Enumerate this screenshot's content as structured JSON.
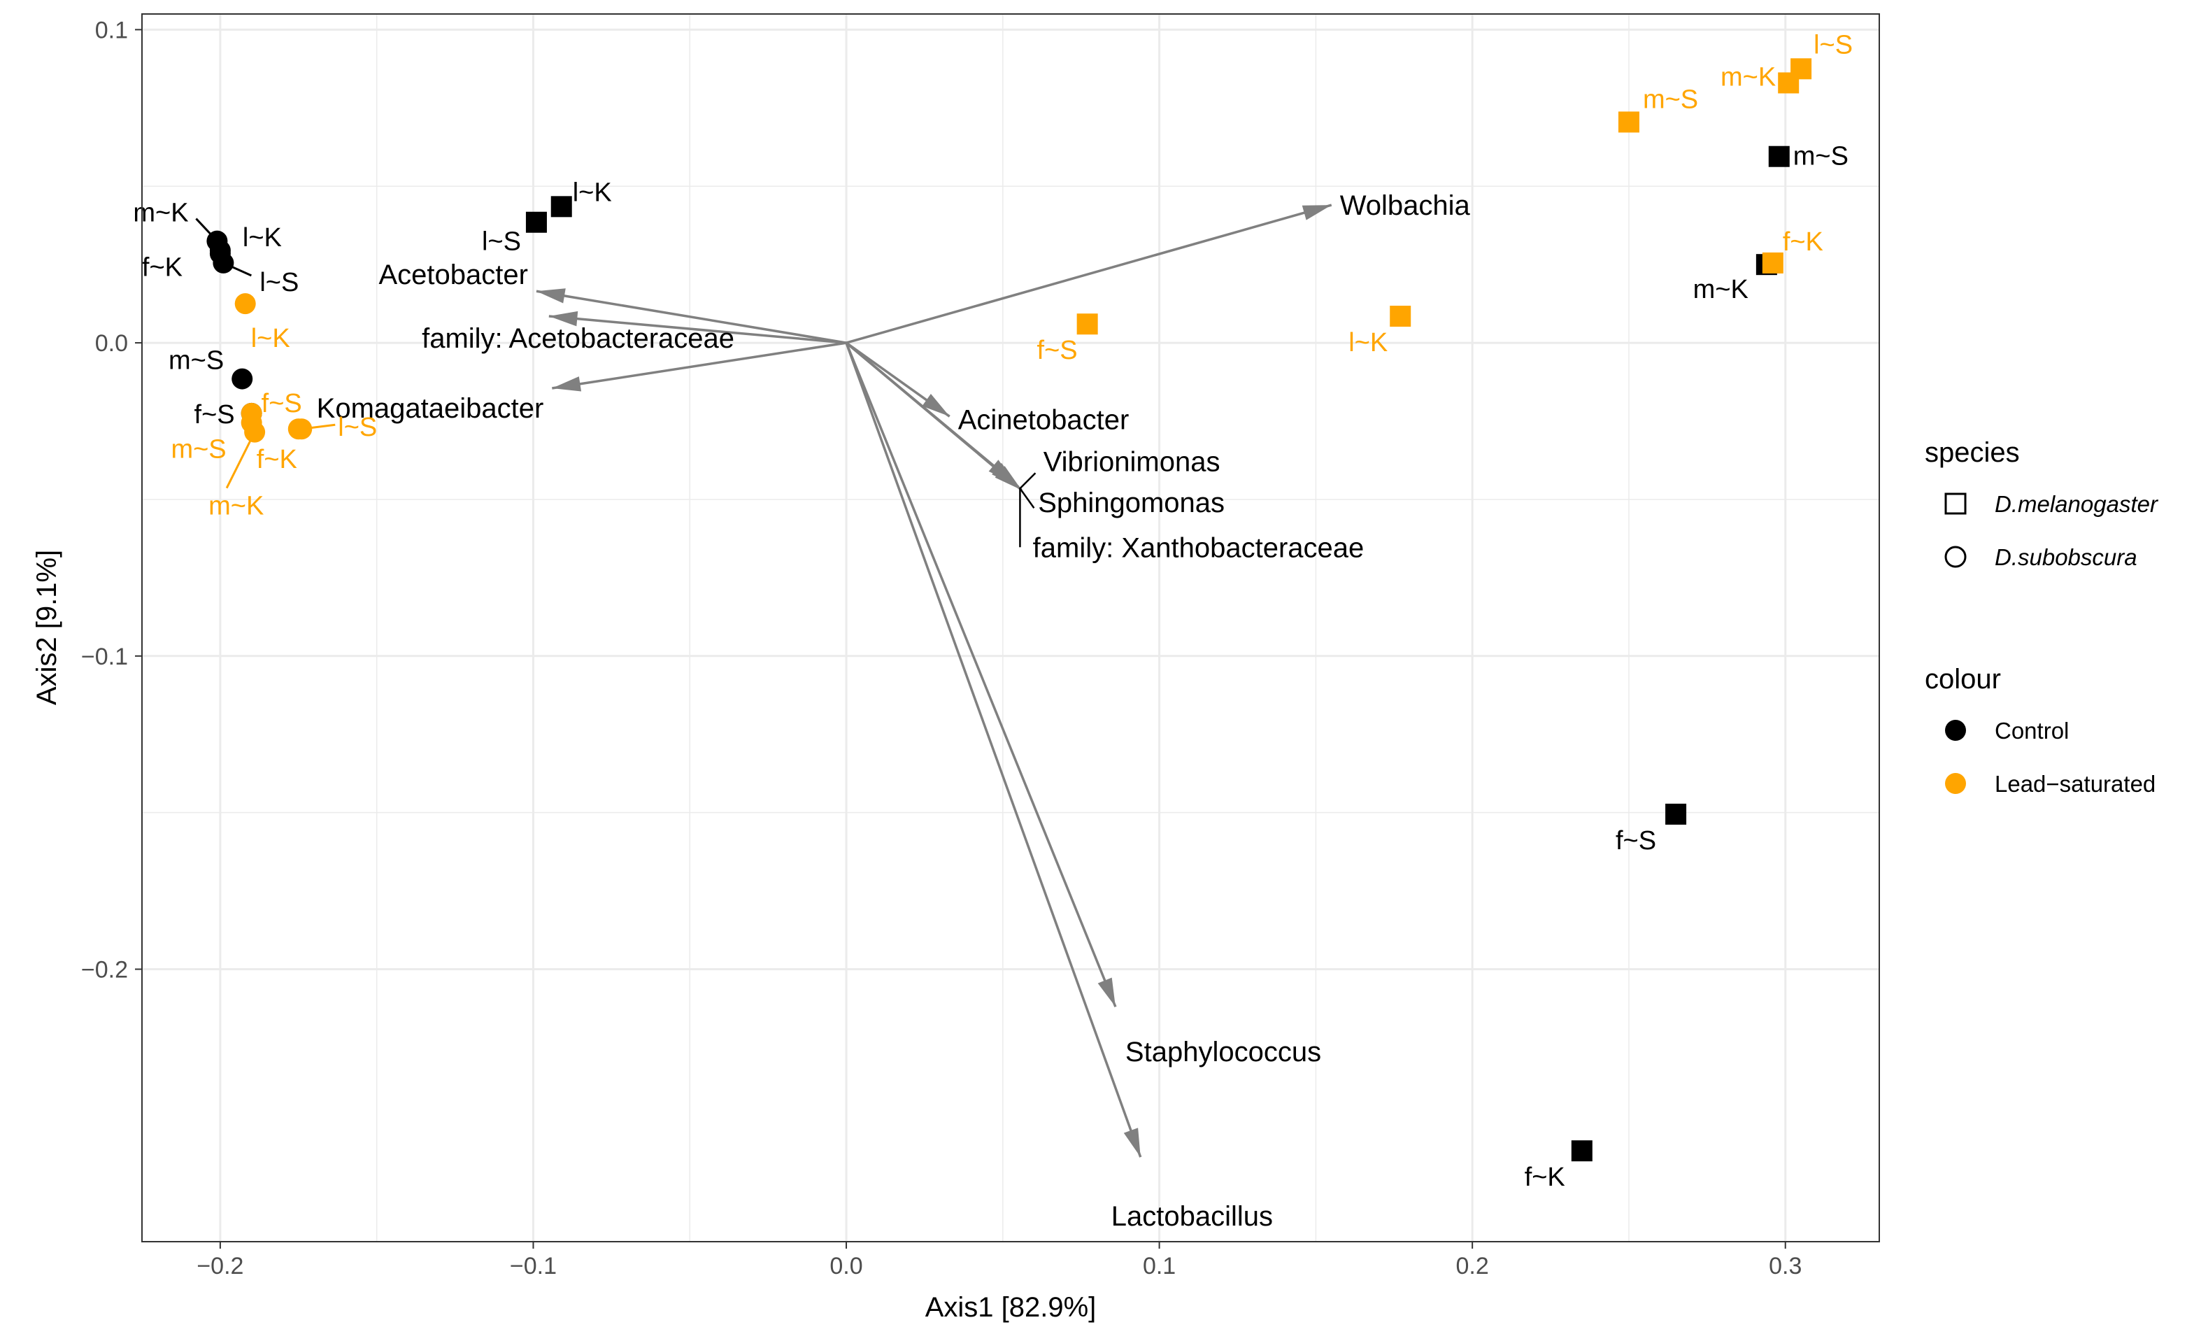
{
  "chart_data": {
    "type": "scatter",
    "xlabel": "Axis1   [82.9%]",
    "ylabel": "Axis2   [9.1%]",
    "xlim": [
      -0.225,
      0.33
    ],
    "ylim": [
      -0.287,
      0.105
    ],
    "x_ticks": [
      {
        "value": -0.2,
        "label": "−0.2"
      },
      {
        "value": -0.1,
        "label": "−0.1"
      },
      {
        "value": 0.0,
        "label": "0.0"
      },
      {
        "value": 0.1,
        "label": "0.1"
      },
      {
        "value": 0.2,
        "label": "0.2"
      },
      {
        "value": 0.3,
        "label": "0.3"
      }
    ],
    "y_ticks": [
      {
        "value": 0.1,
        "label": "0.1"
      },
      {
        "value": 0.0,
        "label": "0.0"
      },
      {
        "value": -0.1,
        "label": "−0.1"
      },
      {
        "value": -0.2,
        "label": "−0.2"
      }
    ],
    "grid": true,
    "legend_position": "right",
    "colors": {
      "Control": "#000000",
      "Lead-saturated": "#ffa500",
      "arrow": "#808080",
      "grid": "#ebebeb"
    },
    "legends": [
      {
        "title": "species",
        "kind": "shape",
        "items": [
          {
            "label": "D.melanogaster",
            "shape": "square",
            "italic": true
          },
          {
            "label": "D.subobscura",
            "shape": "circle",
            "italic": true
          }
        ]
      },
      {
        "title": "colour",
        "kind": "color",
        "items": [
          {
            "label": "Control",
            "colour": "Control"
          },
          {
            "label": "Lead−saturated",
            "colour": "Lead-saturated"
          }
        ]
      }
    ],
    "points": [
      {
        "label": "l~K",
        "x": -0.091,
        "y": 0.0435,
        "species": "D.melanogaster",
        "colour": "Control"
      },
      {
        "label": "l~S",
        "x": -0.099,
        "y": 0.0385,
        "species": "D.melanogaster",
        "colour": "Control"
      },
      {
        "label": "m~S",
        "x": 0.298,
        "y": 0.0595,
        "species": "D.melanogaster",
        "colour": "Control"
      },
      {
        "label": "m~K",
        "x": 0.294,
        "y": 0.025,
        "species": "D.melanogaster",
        "colour": "Control"
      },
      {
        "label": "f~S",
        "x": 0.265,
        "y": -0.1505,
        "species": "D.melanogaster",
        "colour": "Control"
      },
      {
        "label": "f~K",
        "x": 0.235,
        "y": -0.258,
        "species": "D.melanogaster",
        "colour": "Control"
      },
      {
        "label": "l~S",
        "x": 0.305,
        "y": 0.0875,
        "species": "D.melanogaster",
        "colour": "Lead-saturated"
      },
      {
        "label": "m~K",
        "x": 0.301,
        "y": 0.083,
        "species": "D.melanogaster",
        "colour": "Lead-saturated"
      },
      {
        "label": "m~S",
        "x": 0.25,
        "y": 0.0705,
        "species": "D.melanogaster",
        "colour": "Lead-saturated"
      },
      {
        "label": "f~K",
        "x": 0.296,
        "y": 0.0255,
        "species": "D.melanogaster",
        "colour": "Lead-saturated"
      },
      {
        "label": "l~K",
        "x": 0.177,
        "y": 0.0085,
        "species": "D.melanogaster",
        "colour": "Lead-saturated"
      },
      {
        "label": "f~S",
        "x": 0.077,
        "y": 0.006,
        "species": "D.melanogaster",
        "colour": "Lead-saturated"
      },
      {
        "label": "m~K",
        "x": -0.201,
        "y": 0.0325,
        "species": "D.subobscura",
        "colour": "Control"
      },
      {
        "label": "l~K",
        "x": -0.2,
        "y": 0.0295,
        "species": "D.subobscura",
        "colour": "Control"
      },
      {
        "label": "f~K",
        "x": -0.2,
        "y": 0.0285,
        "species": "D.subobscura",
        "colour": "Control"
      },
      {
        "label": "l~S",
        "x": -0.199,
        "y": 0.0255,
        "species": "D.subobscura",
        "colour": "Control"
      },
      {
        "label": "m~S",
        "x": -0.193,
        "y": -0.0115,
        "species": "D.subobscura",
        "colour": "Control"
      },
      {
        "label": "f~S",
        "x": -0.19,
        "y": -0.0225,
        "species": "D.subobscura",
        "colour": "Control"
      },
      {
        "label": "l~K",
        "x": -0.192,
        "y": 0.0125,
        "species": "D.subobscura",
        "colour": "Lead-saturated"
      },
      {
        "label": "f~S",
        "x": -0.19,
        "y": -0.0225,
        "species": "D.subobscura",
        "colour": "Lead-saturated"
      },
      {
        "label": "m~S",
        "x": -0.19,
        "y": -0.0255,
        "species": "D.subobscura",
        "colour": "Lead-saturated"
      },
      {
        "label": "m~K",
        "x": -0.189,
        "y": -0.0285,
        "species": "D.subobscura",
        "colour": "Lead-saturated"
      },
      {
        "label": "f~K",
        "x": -0.175,
        "y": -0.0275,
        "species": "D.subobscura",
        "colour": "Lead-saturated"
      },
      {
        "label": "l~S",
        "x": -0.174,
        "y": -0.0275,
        "species": "D.subobscura",
        "colour": "Lead-saturated"
      }
    ],
    "arrows": [
      {
        "label": "Wolbachia",
        "x": 0.155,
        "y": 0.044
      },
      {
        "label": "Acetobacter",
        "x": -0.099,
        "y": 0.0165
      },
      {
        "label": "family: Acetobacteraceae",
        "x": -0.095,
        "y": 0.0085
      },
      {
        "label": "Komagataeibacter",
        "x": -0.094,
        "y": -0.0145
      },
      {
        "label": "Acinetobacter",
        "x": 0.033,
        "y": -0.0235
      },
      {
        "label": "Vibrionimonas",
        "x": 0.054,
        "y": -0.045
      },
      {
        "label": "Sphingomonas",
        "x": 0.055,
        "y": -0.046
      },
      {
        "label": "family: Xanthobacteraceae",
        "x": 0.056,
        "y": -0.047
      },
      {
        "label": "Staphylococcus",
        "x": 0.086,
        "y": -0.212
      },
      {
        "label": "Lactobacillus",
        "x": 0.094,
        "y": -0.26
      }
    ]
  }
}
